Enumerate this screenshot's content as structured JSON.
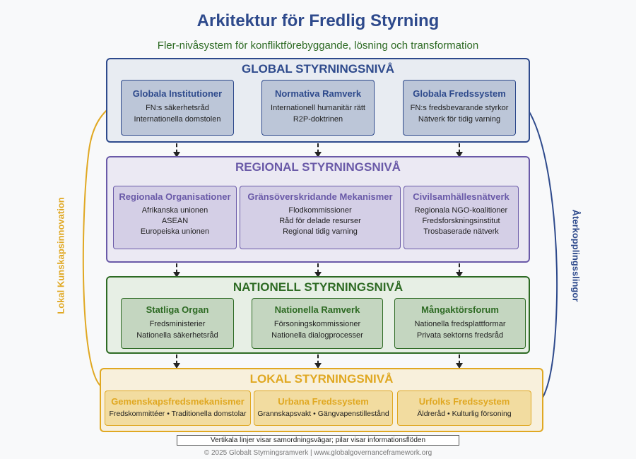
{
  "title": "Arkitektur för Fredlig Styrning",
  "subtitle": "Fler-nivåsystem för konfliktförebyggande, lösning och transformation",
  "levels": {
    "global": {
      "title": "GLOBAL STYRNINGSNIVÅ",
      "boxes": [
        {
          "title": "Globala Institutioner",
          "lines": [
            "FN:s säkerhetsråd",
            "Internationella domstolen"
          ]
        },
        {
          "title": "Normativa Ramverk",
          "lines": [
            "Internationell humanitär rätt",
            "R2P-doktrinen"
          ]
        },
        {
          "title": "Globala Fredssystem",
          "lines": [
            "FN:s fredsbevarande styrkor",
            "Nätverk för tidig varning"
          ]
        }
      ]
    },
    "regional": {
      "title": "REGIONAL STYRNINGSNIVÅ",
      "boxes": [
        {
          "title": "Regionala Organisationer",
          "lines": [
            "Afrikanska unionen",
            "ASEAN",
            "Europeiska unionen"
          ]
        },
        {
          "title": "Gränsöverskridande Mekanismer",
          "lines": [
            "Flodkommissioner",
            "Råd för delade resurser",
            "Regional tidig varning"
          ]
        },
        {
          "title": "Civilsamhällesnätverk",
          "lines": [
            "Regionala NGO-koalitioner",
            "Fredsforskningsinstitut",
            "Trosbaserade nätverk"
          ]
        }
      ]
    },
    "national": {
      "title": "NATIONELL STYRNINGSNIVÅ",
      "boxes": [
        {
          "title": "Statliga Organ",
          "lines": [
            "Fredsministerier",
            "Nationella säkerhetsråd"
          ]
        },
        {
          "title": "Nationella Ramverk",
          "lines": [
            "Försoningskommissioner",
            "Nationella dialogprocesser"
          ]
        },
        {
          "title": "Mångaktörsforum",
          "lines": [
            "Nationella fredsplattformar",
            "Privata sektorns fredsråd"
          ]
        }
      ]
    },
    "local": {
      "title": "LOKAL STYRNINGSNIVÅ",
      "boxes": [
        {
          "title": "Gemenskapsfredsmekanismer",
          "lines": [
            "Fredskommittéer • Traditionella domstolar"
          ]
        },
        {
          "title": "Urbana Fredssystem",
          "lines": [
            "Grannskapsvakt • Gängvapenstillestånd"
          ]
        },
        {
          "title": "Urfolks Fredssystem",
          "lines": [
            "Äldreråd • Kulturlig försoning"
          ]
        }
      ]
    }
  },
  "side_labels": {
    "left": "Lokal Kunskapsinnovation",
    "right": "Återkopplingsslingor"
  },
  "colors": {
    "global": "#2e4a8c",
    "regional": "#6a5aa8",
    "national": "#2e6b24",
    "local": "#e0a822"
  },
  "note": "Vertikala linjer visar samordningsvägar; pilar visar informationsflöden",
  "footer": "© 2025 Globalt Styrningsramverk | www.globalgovernanceframework.org"
}
